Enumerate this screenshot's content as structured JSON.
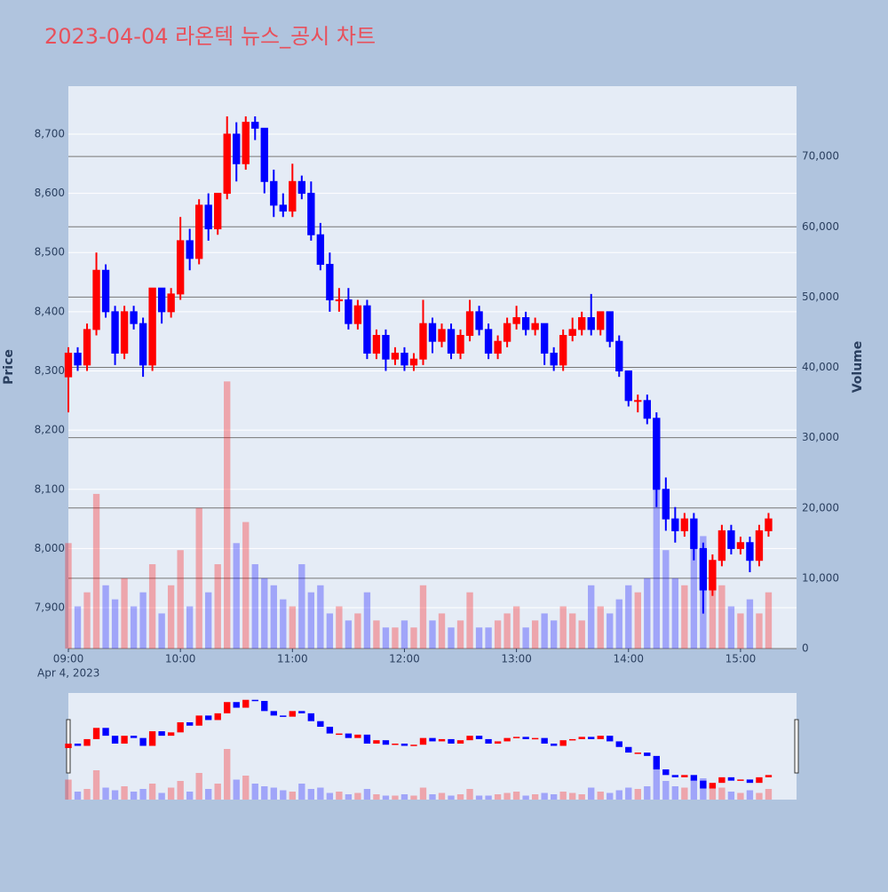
{
  "chart_data": {
    "type": "candlestick",
    "title": "2023-04-04 라온텍 뉴스_공시 차트",
    "y_label": "Price",
    "y2_label": "Volume",
    "x_date_label": "Apr 4, 2023",
    "increasing_color": "#ff0000",
    "decreasing_color": "#0000ff",
    "xlim": [
      "2023-04-04 09:00",
      "2023-04-04 15:30"
    ],
    "xticks": [
      {
        "value": "2023-04-04 09:00",
        "label": "09:00"
      },
      {
        "value": "2023-04-04 10:00",
        "label": "10:00"
      },
      {
        "value": "2023-04-04 11:00",
        "label": "11:00"
      },
      {
        "value": "2023-04-04 12:00",
        "label": "12:00"
      },
      {
        "value": "2023-04-04 13:00",
        "label": "13:00"
      },
      {
        "value": "2023-04-04 14:00",
        "label": "14:00"
      },
      {
        "value": "2023-04-04 15:00",
        "label": "15:00"
      }
    ],
    "ylim": [
      7831,
      8781
    ],
    "yticks": [
      {
        "value": 7900,
        "label": "7,900"
      },
      {
        "value": 8000,
        "label": "8,000"
      },
      {
        "value": 8100,
        "label": "8,100"
      },
      {
        "value": 8200,
        "label": "8,200"
      },
      {
        "value": 8300,
        "label": "8,300"
      },
      {
        "value": 8400,
        "label": "8,400"
      },
      {
        "value": 8500,
        "label": "8,500"
      },
      {
        "value": 8600,
        "label": "8,600"
      },
      {
        "value": 8700,
        "label": "8,700"
      }
    ],
    "y2lim": [
      0,
      80000
    ],
    "y2ticks": [
      0,
      {
        "value": 10000,
        "label": "10,000"
      },
      {
        "value": 20000,
        "label": "20,000"
      },
      {
        "value": 30000,
        "label": "30,000"
      },
      {
        "value": 40000,
        "label": "40,000"
      },
      {
        "value": 50000,
        "label": "50,000"
      },
      {
        "value": 60000,
        "label": "60,000"
      },
      {
        "value": 70000,
        "label": "70,000"
      }
    ],
    "x": [
      "2023-04-04 09:00",
      "2023-04-04 09:05",
      "2023-04-04 09:10",
      "2023-04-04 09:15",
      "2023-04-04 09:20",
      "2023-04-04 09:25",
      "2023-04-04 09:30",
      "2023-04-04 09:35",
      "2023-04-04 09:40",
      "2023-04-04 09:45",
      "2023-04-04 09:50",
      "2023-04-04 09:55",
      "2023-04-04 10:00",
      "2023-04-04 10:05",
      "2023-04-04 10:10",
      "2023-04-04 10:15",
      "2023-04-04 10:20",
      "2023-04-04 10:25",
      "2023-04-04 10:30",
      "2023-04-04 10:35",
      "2023-04-04 10:40",
      "2023-04-04 10:45",
      "2023-04-04 10:50",
      "2023-04-04 10:55",
      "2023-04-04 11:00",
      "2023-04-04 11:05",
      "2023-04-04 11:10",
      "2023-04-04 11:15",
      "2023-04-04 11:20",
      "2023-04-04 11:25",
      "2023-04-04 11:30",
      "2023-04-04 11:35",
      "2023-04-04 11:40",
      "2023-04-04 11:45",
      "2023-04-04 11:50",
      "2023-04-04 11:55",
      "2023-04-04 12:00",
      "2023-04-04 12:05",
      "2023-04-04 12:10",
      "2023-04-04 12:15",
      "2023-04-04 12:20",
      "2023-04-04 12:25",
      "2023-04-04 12:30",
      "2023-04-04 12:35",
      "2023-04-04 12:40",
      "2023-04-04 12:45",
      "2023-04-04 12:50",
      "2023-04-04 12:55",
      "2023-04-04 13:00",
      "2023-04-04 13:05",
      "2023-04-04 13:10",
      "2023-04-04 13:15",
      "2023-04-04 13:20",
      "2023-04-04 13:25",
      "2023-04-04 13:30",
      "2023-04-04 13:35",
      "2023-04-04 13:40",
      "2023-04-04 13:45",
      "2023-04-04 13:50",
      "2023-04-04 13:55",
      "2023-04-04 14:00",
      "2023-04-04 14:05",
      "2023-04-04 14:10",
      "2023-04-04 14:15",
      "2023-04-04 14:20",
      "2023-04-04 14:25",
      "2023-04-04 14:30",
      "2023-04-04 14:35",
      "2023-04-04 14:40",
      "2023-04-04 14:45",
      "2023-04-04 14:50",
      "2023-04-04 14:55",
      "2023-04-04 15:00",
      "2023-04-04 15:05",
      "2023-04-04 15:10",
      "2023-04-04 15:15"
    ],
    "open": [
      8290,
      8330,
      8310,
      8370,
      8470,
      8400,
      8330,
      8400,
      8380,
      8310,
      8440,
      8400,
      8430,
      8520,
      8490,
      8580,
      8540,
      8600,
      8700,
      8650,
      8720,
      8710,
      8620,
      8580,
      8570,
      8620,
      8600,
      8530,
      8480,
      8420,
      8420,
      8380,
      8410,
      8330,
      8360,
      8320,
      8330,
      8310,
      8320,
      8380,
      8350,
      8370,
      8330,
      8360,
      8400,
      8370,
      8330,
      8350,
      8380,
      8390,
      8370,
      8380,
      8330,
      8310,
      8360,
      8370,
      8390,
      8370,
      8400,
      8350,
      8300,
      8250,
      8250,
      8220,
      8100,
      8050,
      8030,
      8050,
      8000,
      7930,
      7980,
      8030,
      8000,
      8010,
      7980,
      8030
    ],
    "high": [
      8340,
      8340,
      8380,
      8500,
      8480,
      8410,
      8410,
      8410,
      8390,
      8440,
      8440,
      8440,
      8560,
      8540,
      8590,
      8600,
      8600,
      8730,
      8720,
      8730,
      8730,
      8710,
      8640,
      8600,
      8650,
      8630,
      8620,
      8550,
      8500,
      8440,
      8440,
      8420,
      8420,
      8370,
      8370,
      8340,
      8340,
      8330,
      8420,
      8390,
      8380,
      8380,
      8370,
      8420,
      8410,
      8380,
      8360,
      8390,
      8410,
      8400,
      8390,
      8380,
      8340,
      8370,
      8390,
      8400,
      8430,
      8400,
      8400,
      8360,
      8300,
      8260,
      8260,
      8230,
      8120,
      8070,
      8060,
      8060,
      8010,
      7990,
      8040,
      8040,
      8020,
      8020,
      8040,
      8060
    ],
    "low": [
      8230,
      8300,
      8300,
      8360,
      8390,
      8310,
      8320,
      8370,
      8290,
      8300,
      8380,
      8390,
      8420,
      8470,
      8480,
      8520,
      8530,
      8590,
      8620,
      8640,
      8690,
      8600,
      8560,
      8560,
      8560,
      8590,
      8520,
      8470,
      8400,
      8400,
      8370,
      8370,
      8320,
      8320,
      8300,
      8310,
      8300,
      8300,
      8310,
      8330,
      8340,
      8320,
      8320,
      8350,
      8360,
      8320,
      8320,
      8340,
      8370,
      8360,
      8360,
      8310,
      8300,
      8300,
      8350,
      8360,
      8360,
      8360,
      8340,
      8290,
      8240,
      8230,
      8210,
      8070,
      8030,
      8010,
      8020,
      7980,
      7890,
      7920,
      7970,
      7990,
      7990,
      7960,
      7970,
      8020
    ],
    "close": [
      8330,
      8310,
      8370,
      8470,
      8400,
      8330,
      8400,
      8380,
      8310,
      8440,
      8400,
      8430,
      8520,
      8490,
      8580,
      8540,
      8600,
      8700,
      8650,
      8720,
      8710,
      8620,
      8580,
      8570,
      8620,
      8600,
      8530,
      8480,
      8420,
      8420,
      8380,
      8410,
      8330,
      8360,
      8320,
      8330,
      8310,
      8320,
      8380,
      8350,
      8370,
      8330,
      8360,
      8400,
      8370,
      8330,
      8350,
      8380,
      8390,
      8370,
      8380,
      8330,
      8310,
      8360,
      8370,
      8390,
      8370,
      8400,
      8350,
      8300,
      8250,
      8250,
      8220,
      8100,
      8050,
      8030,
      8050,
      8000,
      7930,
      7980,
      8030,
      8000,
      8010,
      7980,
      8030,
      8050
    ],
    "volume": [
      15000,
      6000,
      8000,
      22000,
      9000,
      7000,
      10000,
      6000,
      8000,
      12000,
      5000,
      9000,
      14000,
      6000,
      20000,
      8000,
      12000,
      38000,
      15000,
      18000,
      12000,
      10000,
      9000,
      7000,
      6000,
      12000,
      8000,
      9000,
      5000,
      6000,
      4000,
      5000,
      8000,
      4000,
      3000,
      3000,
      4000,
      3000,
      9000,
      4000,
      5000,
      3000,
      4000,
      8000,
      3000,
      3000,
      4000,
      5000,
      6000,
      3000,
      4000,
      5000,
      4000,
      6000,
      5000,
      4000,
      9000,
      6000,
      5000,
      7000,
      9000,
      8000,
      10000,
      30000,
      14000,
      10000,
      9000,
      15000,
      16000,
      10000,
      9000,
      6000,
      5000,
      7000,
      5000,
      8000
    ]
  }
}
